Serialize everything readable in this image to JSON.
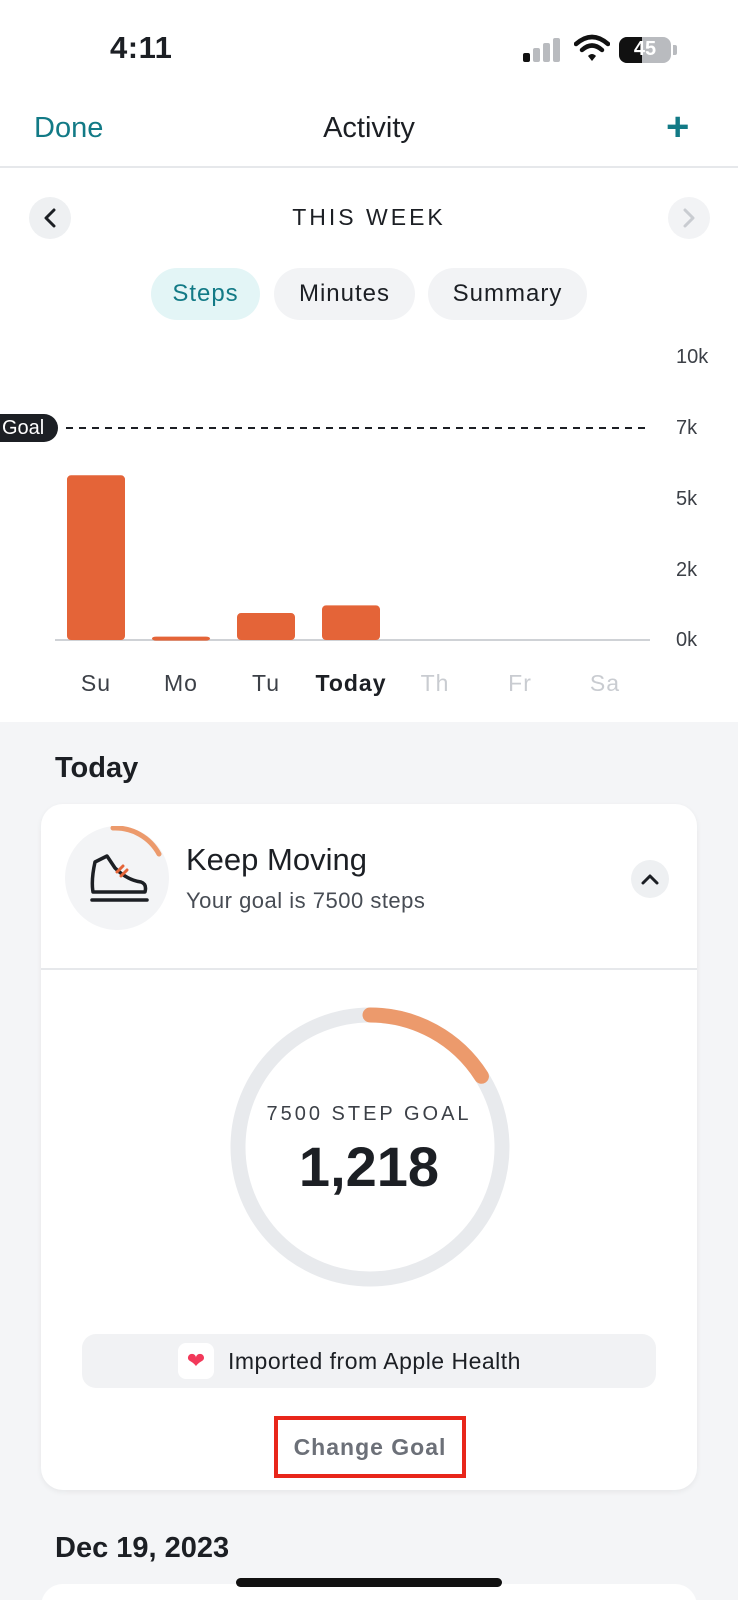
{
  "status_bar": {
    "time": "4:11",
    "battery": "45",
    "battery_level": 0.45
  },
  "nav": {
    "done_label": "Done",
    "title": "Activity",
    "add_label": "+"
  },
  "week": {
    "label": "THIS WEEK"
  },
  "tabs": [
    {
      "label": "Steps",
      "active": true
    },
    {
      "label": "Minutes",
      "active": false
    },
    {
      "label": "Summary",
      "active": false
    }
  ],
  "chart_data": {
    "type": "bar",
    "categories": [
      "Su",
      "Mo",
      "Tu",
      "Today",
      "Th",
      "Fr",
      "Sa"
    ],
    "values": [
      5800,
      120,
      950,
      1218,
      0,
      0,
      0
    ],
    "ytick_labels": [
      "10k",
      "7k",
      "5k",
      "2k",
      "0k"
    ],
    "ylim": [
      0,
      10000
    ],
    "goal": 7500,
    "goal_label": "Goal",
    "bar_color": "#e46438"
  },
  "today": {
    "section_title": "Today",
    "card_title": "Keep Moving",
    "card_subtitle": "Your goal is 7500 steps",
    "ring_label": "7500 STEP GOAL",
    "ring_value": "1,218",
    "ring_progress": 0.16,
    "import_text": "Imported from Apple Health",
    "change_goal_label": "Change Goal"
  },
  "next_section": {
    "title": "Dec 19, 2023"
  },
  "colors": {
    "accent": "#127a86",
    "bar": "#e46438",
    "ring_progress": "#ec9a6c",
    "highlight": "#e8261a"
  }
}
